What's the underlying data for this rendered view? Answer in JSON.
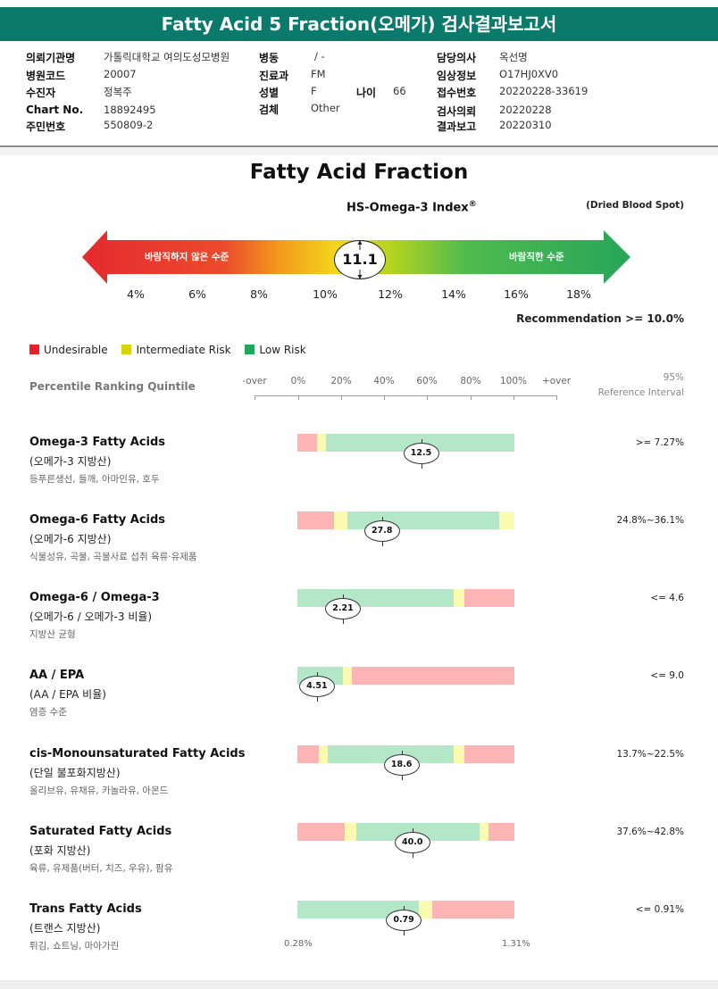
{
  "report_title": "Fatty Acid 5 Fraction(오메가) 검사결과보고서",
  "patient_info": {
    "institution_label": "의뢰기관명",
    "institution": "가톨릭대학교 여의도성모병원",
    "hospital_code_label": "병원코드",
    "hospital_code": "20007",
    "examinee_label": "수진자",
    "examinee": "정복주",
    "chart_label": "Chart No.",
    "chart_no": "18892495",
    "resident_label": "주민번호",
    "resident_no": "550809-2",
    "ward_label": "병동",
    "ward": "/ -",
    "dept_label": "진료과",
    "dept": "FM",
    "sex_label": "성별",
    "sex": "F",
    "age_label": "나이",
    "age": "66",
    "specimen_label": "검체",
    "specimen": "Other",
    "doctor_label": "담당의사",
    "doctor": "옥선명",
    "clinical_label": "임상정보",
    "clinical": "O17HJ0XV0",
    "accession_label": "접수번호",
    "accession": "20220228-33619",
    "request_label": "검사의뢰",
    "request_date": "20220228",
    "result_label": "결과보고",
    "result_date": "20220310"
  },
  "section_title": "Fatty Acid Fraction",
  "index_title": "HS-Omega-3 Index",
  "index_sup": "®",
  "specimen_note": "(Dried Blood Spot)",
  "index_value": "11.1",
  "index_left_label": "바람직하지 않은 수준",
  "index_right_label": "바람직한 수준",
  "index_ticks": [
    "4%",
    "6%",
    "8%",
    "10%",
    "12%",
    "14%",
    "16%",
    "18%"
  ],
  "recommendation": "Recommendation  >= 10.0%",
  "legend": [
    {
      "label": "Undesirable",
      "color": "#e8202a"
    },
    {
      "label": "Intermediate Risk",
      "color": "#d8d40a"
    },
    {
      "label": "Low Risk",
      "color": "#20a85a"
    }
  ],
  "quintile_title": "Percentile Ranking Quintile",
  "quintile_ticks": [
    "-over",
    "0%",
    "20%",
    "40%",
    "60%",
    "80%",
    "100%",
    "+over"
  ],
  "ref_header_1": "95%",
  "ref_header_2": "Reference Interval",
  "colors": {
    "red": "#fdb4b4",
    "yellow": "#fafab0",
    "green": "#b4e6c8",
    "header": "#0c7a6a"
  },
  "rows": [
    {
      "name": "Omega-3 Fatty Acids",
      "sub": "(오메가-3 지방산)",
      "desc": "등푸른생선, 들깨, 아마인유, 호두",
      "ref": ">= 7.27%",
      "value": "12.5",
      "marker_pos": 0.57,
      "segments": [
        {
          "c": "red",
          "s": 0.0,
          "e": 0.09
        },
        {
          "c": "yellow",
          "s": 0.09,
          "e": 0.13
        },
        {
          "c": "green",
          "s": 0.13,
          "e": 1.0
        }
      ]
    },
    {
      "name": "Omega-6 Fatty Acids",
      "sub": "(오메가-6 지방산)",
      "desc": "식물성유, 곡물, 곡물사료 섭취 육류·유제품",
      "ref": "24.8%~36.1%",
      "value": "27.8",
      "marker_pos": 0.39,
      "segments": [
        {
          "c": "red",
          "s": 0.0,
          "e": 0.17
        },
        {
          "c": "yellow",
          "s": 0.17,
          "e": 0.23
        },
        {
          "c": "green",
          "s": 0.23,
          "e": 0.93
        },
        {
          "c": "yellow",
          "s": 0.93,
          "e": 1.0
        }
      ]
    },
    {
      "name": "Omega-6 / Omega-3",
      "sub": "(오메가-6 / 오메가-3 비율)",
      "desc": "지방산 균형",
      "ref": "<= 4.6",
      "value": "2.21",
      "marker_pos": 0.21,
      "segments": [
        {
          "c": "green",
          "s": 0.0,
          "e": 0.72
        },
        {
          "c": "yellow",
          "s": 0.72,
          "e": 0.77
        },
        {
          "c": "red",
          "s": 0.77,
          "e": 1.0
        }
      ]
    },
    {
      "name": "AA / EPA",
      "sub": "(AA / EPA 비율)",
      "desc": "염증 수준",
      "ref": "<= 9.0",
      "value": "4.51",
      "marker_pos": 0.09,
      "segments": [
        {
          "c": "green",
          "s": 0.0,
          "e": 0.21
        },
        {
          "c": "yellow",
          "s": 0.21,
          "e": 0.25
        },
        {
          "c": "red",
          "s": 0.25,
          "e": 1.0
        }
      ]
    },
    {
      "name": "cis-Monounsaturated Fatty Acids",
      "sub": "(단일 불포화지방산)",
      "desc": "올리브유, 유채유, 카놀라유, 아몬드",
      "ref": "13.7%~22.5%",
      "value": "18.6",
      "marker_pos": 0.48,
      "segments": [
        {
          "c": "red",
          "s": 0.0,
          "e": 0.1
        },
        {
          "c": "yellow",
          "s": 0.1,
          "e": 0.14
        },
        {
          "c": "green",
          "s": 0.14,
          "e": 0.72
        },
        {
          "c": "yellow",
          "s": 0.72,
          "e": 0.77
        },
        {
          "c": "red",
          "s": 0.77,
          "e": 1.0
        }
      ]
    },
    {
      "name": "Saturated Fatty Acids",
      "sub": "(포화 지방산)",
      "desc": "육류, 유제품(버터, 치즈, 우유), 팜유",
      "ref": "37.6%~42.8%",
      "value": "40.0",
      "marker_pos": 0.53,
      "segments": [
        {
          "c": "red",
          "s": 0.0,
          "e": 0.22
        },
        {
          "c": "yellow",
          "s": 0.22,
          "e": 0.27
        },
        {
          "c": "green",
          "s": 0.27,
          "e": 0.84
        },
        {
          "c": "yellow",
          "s": 0.84,
          "e": 0.88
        },
        {
          "c": "red",
          "s": 0.88,
          "e": 1.0
        }
      ]
    },
    {
      "name": "Trans Fatty Acids",
      "sub": "(트랜스 지방산)",
      "desc": "튀김, 쇼트닝, 마아가린",
      "ref": "<= 0.91%",
      "value": "0.79",
      "marker_pos": 0.49,
      "segments": [
        {
          "c": "green",
          "s": 0.0,
          "e": 0.56
        },
        {
          "c": "yellow",
          "s": 0.56,
          "e": 0.62
        },
        {
          "c": "red",
          "s": 0.62,
          "e": 1.0
        }
      ]
    }
  ],
  "axis_min": "0.28%",
  "axis_max": "1.31%"
}
